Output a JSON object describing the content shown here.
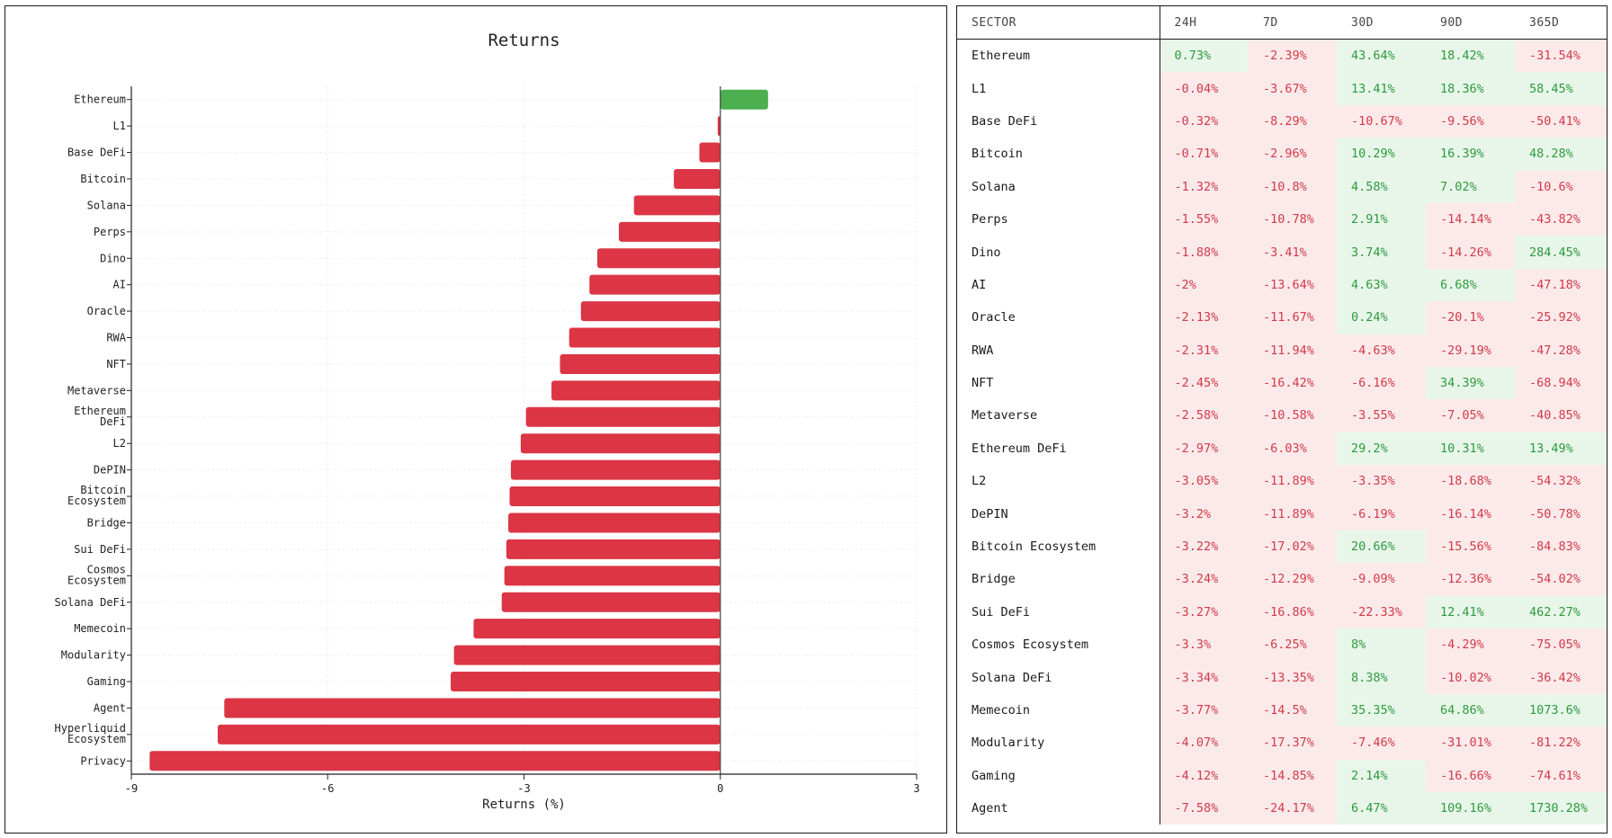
{
  "chart_data": {
    "type": "bar",
    "orientation": "horizontal",
    "title": "Returns",
    "xlabel": "Returns (%)",
    "ylabel": "",
    "xlim": [
      -9,
      3
    ],
    "xticks": [
      -9,
      -6,
      -3,
      0,
      3
    ],
    "grid": true,
    "categories": [
      "Ethereum",
      "L1",
      "Base DeFi",
      "Bitcoin",
      "Solana",
      "Perps",
      "Dino",
      "AI",
      "Oracle",
      "RWA",
      "NFT",
      "Metaverse",
      "Ethereum DeFi",
      "L2",
      "DePIN",
      "Bitcoin Ecosystem",
      "Bridge",
      "Sui DeFi",
      "Cosmos Ecosystem",
      "Solana DeFi",
      "Memecoin",
      "Modularity",
      "Gaming",
      "Agent",
      "Hyperliquid Ecosystem",
      "Privacy"
    ],
    "values": [
      0.73,
      -0.04,
      -0.32,
      -0.71,
      -1.32,
      -1.55,
      -1.88,
      -2,
      -2.13,
      -2.31,
      -2.45,
      -2.58,
      -2.97,
      -3.05,
      -3.2,
      -3.22,
      -3.24,
      -3.27,
      -3.3,
      -3.34,
      -3.77,
      -4.07,
      -4.12,
      -7.58,
      -7.68,
      -8.72
    ],
    "colors": {
      "positive": "#4caf50",
      "negative": "#dc3545"
    }
  },
  "table": {
    "headers": [
      "SECTOR",
      "24H",
      "7D",
      "30D",
      "90D",
      "365D"
    ],
    "rows": [
      [
        "Ethereum",
        "0.73%",
        "-2.39%",
        "43.64%",
        "18.42%",
        "-31.54%"
      ],
      [
        "L1",
        "-0.04%",
        "-3.67%",
        "13.41%",
        "18.36%",
        "58.45%"
      ],
      [
        "Base DeFi",
        "-0.32%",
        "-8.29%",
        "-10.67%",
        "-9.56%",
        "-50.41%"
      ],
      [
        "Bitcoin",
        "-0.71%",
        "-2.96%",
        "10.29%",
        "16.39%",
        "48.28%"
      ],
      [
        "Solana",
        "-1.32%",
        "-10.8%",
        "4.58%",
        "7.02%",
        "-10.6%"
      ],
      [
        "Perps",
        "-1.55%",
        "-10.78%",
        "2.91%",
        "-14.14%",
        "-43.82%"
      ],
      [
        "Dino",
        "-1.88%",
        "-3.41%",
        "3.74%",
        "-14.26%",
        "284.45%"
      ],
      [
        "AI",
        "-2%",
        "-13.64%",
        "4.63%",
        "6.68%",
        "-47.18%"
      ],
      [
        "Oracle",
        "-2.13%",
        "-11.67%",
        "0.24%",
        "-20.1%",
        "-25.92%"
      ],
      [
        "RWA",
        "-2.31%",
        "-11.94%",
        "-4.63%",
        "-29.19%",
        "-47.28%"
      ],
      [
        "NFT",
        "-2.45%",
        "-16.42%",
        "-6.16%",
        "34.39%",
        "-68.94%"
      ],
      [
        "Metaverse",
        "-2.58%",
        "-10.58%",
        "-3.55%",
        "-7.05%",
        "-40.85%"
      ],
      [
        "Ethereum DeFi",
        "-2.97%",
        "-6.03%",
        "29.2%",
        "10.31%",
        "13.49%"
      ],
      [
        "L2",
        "-3.05%",
        "-11.89%",
        "-3.35%",
        "-18.68%",
        "-54.32%"
      ],
      [
        "DePIN",
        "-3.2%",
        "-11.89%",
        "-6.19%",
        "-16.14%",
        "-50.78%"
      ],
      [
        "Bitcoin Ecosystem",
        "-3.22%",
        "-17.02%",
        "20.66%",
        "-15.56%",
        "-84.83%"
      ],
      [
        "Bridge",
        "-3.24%",
        "-12.29%",
        "-9.09%",
        "-12.36%",
        "-54.02%"
      ],
      [
        "Sui DeFi",
        "-3.27%",
        "-16.86%",
        "-22.33%",
        "12.41%",
        "462.27%"
      ],
      [
        "Cosmos Ecosystem",
        "-3.3%",
        "-6.25%",
        "8%",
        "-4.29%",
        "-75.05%"
      ],
      [
        "Solana DeFi",
        "-3.34%",
        "-13.35%",
        "8.38%",
        "-10.02%",
        "-36.42%"
      ],
      [
        "Memecoin",
        "-3.77%",
        "-14.5%",
        "35.35%",
        "64.86%",
        "1073.6%"
      ],
      [
        "Modularity",
        "-4.07%",
        "-17.37%",
        "-7.46%",
        "-31.01%",
        "-81.22%"
      ],
      [
        "Gaming",
        "-4.12%",
        "-14.85%",
        "2.14%",
        "-16.66%",
        "-74.61%"
      ],
      [
        "Agent",
        "-7.58%",
        "-24.17%",
        "6.47%",
        "109.16%",
        "1730.28%"
      ]
    ]
  }
}
